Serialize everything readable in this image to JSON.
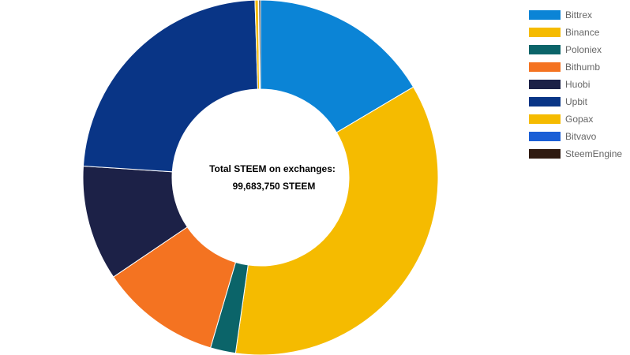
{
  "chart_data": {
    "type": "pie",
    "variant": "doughnut",
    "legend_position": "right",
    "center_label": {
      "line1": "Total STEEM on exchanges:",
      "line2": "99,683,750 STEEM"
    },
    "series": [
      {
        "name": "Bittrex",
        "value": 16.5,
        "color": "#0b84d6"
      },
      {
        "name": "Binance",
        "value": 35.8,
        "color": "#f5bb00"
      },
      {
        "name": "Poloniex",
        "value": 2.3,
        "color": "#0b6469"
      },
      {
        "name": "Bithumb",
        "value": 11.0,
        "color": "#f47321"
      },
      {
        "name": "Huobi",
        "value": 10.5,
        "color": "#1c2147"
      },
      {
        "name": "Upbit",
        "value": 23.5,
        "color": "#093586"
      },
      {
        "name": "Gopax",
        "value": 0.3,
        "color": "#f5bb00"
      },
      {
        "name": "Bitvavo",
        "value": 0.05,
        "color": "#1a5fd6"
      },
      {
        "name": "SteemEngine",
        "value": 0.15,
        "color": "#2f1a10"
      }
    ]
  }
}
